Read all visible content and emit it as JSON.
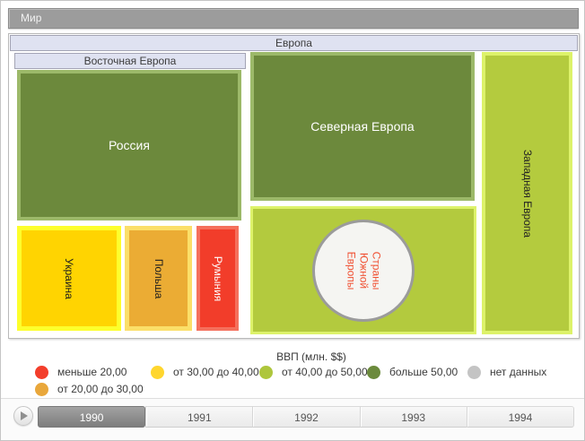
{
  "breadcrumb": {
    "world_label": "Мир"
  },
  "treemap": {
    "region_label": "Европа",
    "eastern_label": "Восточная Европа",
    "tiles": {
      "russia": {
        "label": "Россия",
        "fill": "#6c893c",
        "border": "#9cb969",
        "text_color": "#ffffff"
      },
      "ukraine": {
        "label": "Украина",
        "fill": "#ffd401",
        "border": "#fdff2c",
        "text_color": "#1c1c1c"
      },
      "poland": {
        "label": "Польша",
        "fill": "#ebac34",
        "border": "#fbdf69",
        "text_color": "#1c1c1c"
      },
      "romania": {
        "label": "Румыния",
        "fill": "#f23d2a",
        "border": "#f5705c",
        "text_color": "#ffffff"
      },
      "northern": {
        "label": "Северная Европа",
        "fill": "#6c893c",
        "border": "#9cb969",
        "text_color": "#ffffff"
      },
      "southern": {
        "label": "Страны Южной Европы",
        "label_multiline": "Страны\nЮжной\nЕвропы",
        "fill": "#b3ca3e",
        "border": "#ddf26a",
        "circle_fill": "#f5f5f2",
        "circle_border": "#9b9b9b",
        "text_color": "#f05032"
      },
      "western": {
        "label": "Западная Европа",
        "fill": "#b4cb3e",
        "border": "#ddf26a",
        "text_color": "#222222"
      }
    }
  },
  "legend": {
    "title": "ВВП (млн. $$)",
    "items": [
      {
        "label": "меньше 20,00",
        "color": "#f33e2b"
      },
      {
        "label": "от 20,00 до 30,00",
        "color": "#e9a73b"
      },
      {
        "label": "от 30,00 до 40,00",
        "color": "#ffd62e"
      },
      {
        "label": "от 40,00 до 50,00",
        "color": "#aec63c"
      },
      {
        "label": "больше 50,00",
        "color": "#6b8a3c"
      },
      {
        "label": "нет данных",
        "color": "#c4c4c4"
      }
    ]
  },
  "timeline": {
    "selected_year": "1990",
    "years": [
      "1990",
      "1991",
      "1992",
      "1993",
      "1994"
    ],
    "play_icon": "play-icon"
  }
}
